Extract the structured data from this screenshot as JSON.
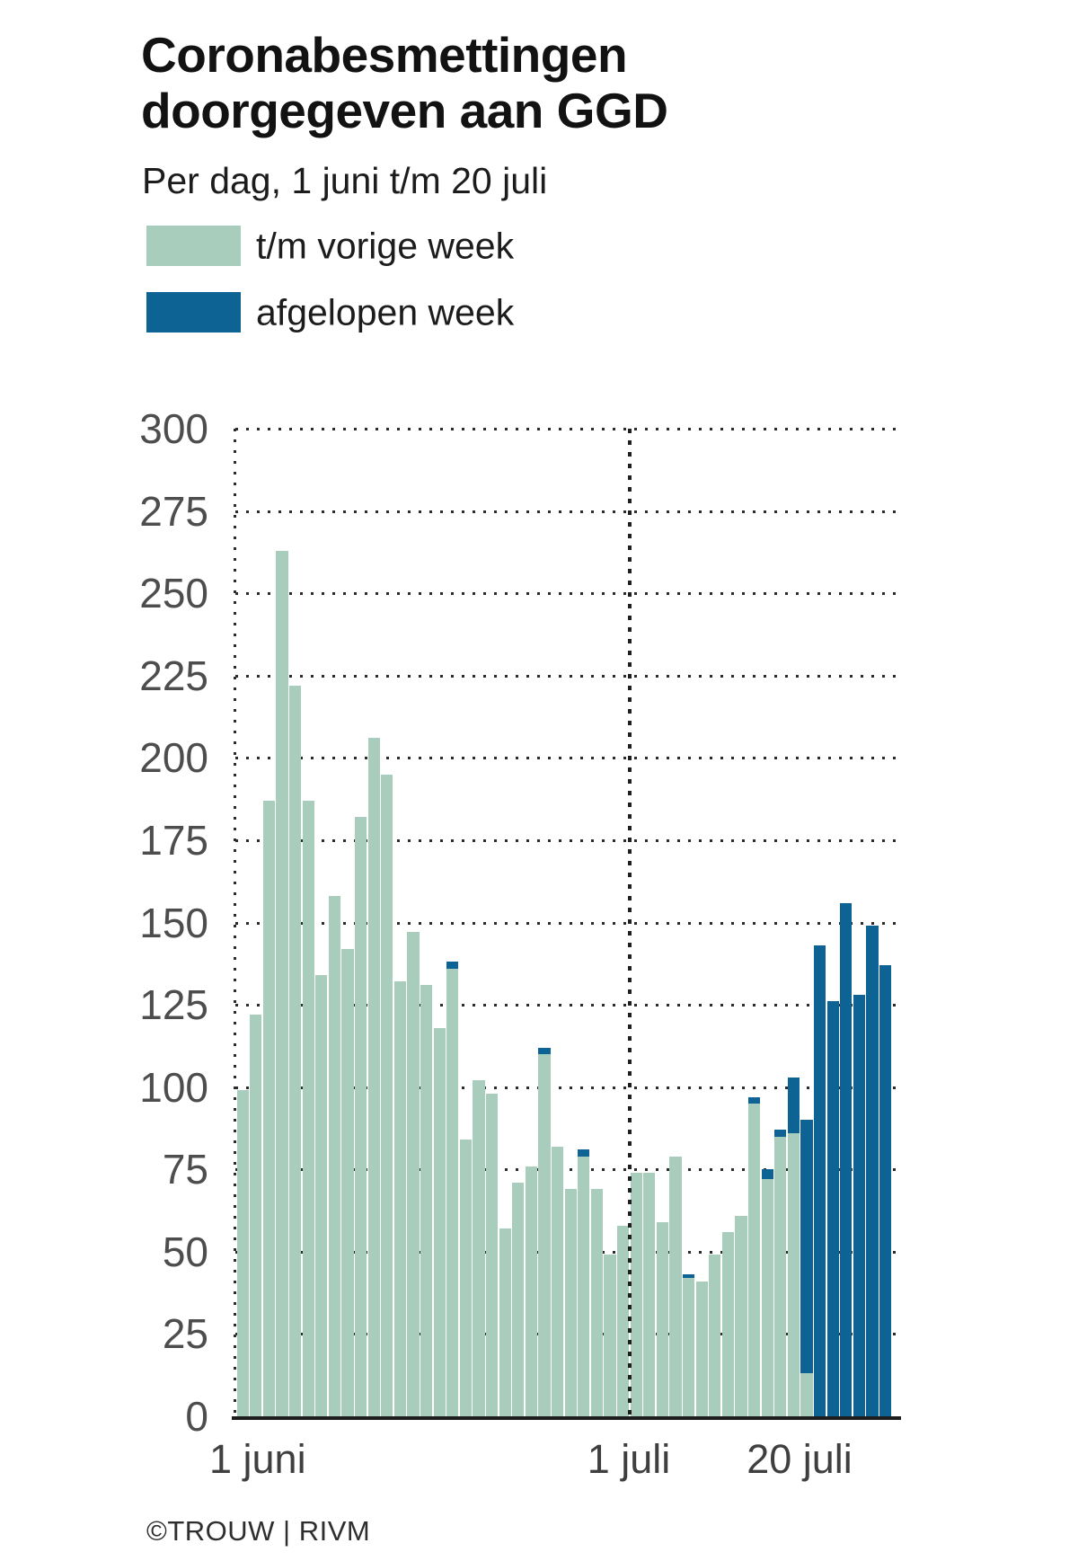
{
  "header": {
    "title_line1": "Coronabesmettingen",
    "title_line2": "doorgegeven aan GGD",
    "subtitle": "Per dag, 1 juni t/m 20 juli"
  },
  "legend": [
    {
      "label": "t/m vorige week",
      "color": "#a9cdbc"
    },
    {
      "label": "afgelopen week",
      "color": "#0d6394"
    }
  ],
  "footer": {
    "credit": "©TROUW | RIVM"
  },
  "chart_data": {
    "type": "bar",
    "stacked": true,
    "title": "Coronabesmettingen doorgegeven aan GGD",
    "subtitle": "Per dag, 1 juni t/m 20 juli",
    "ylim": [
      0,
      300
    ],
    "y_ticks": [
      0,
      25,
      50,
      75,
      100,
      125,
      150,
      175,
      200,
      225,
      250,
      275,
      300
    ],
    "x_tick_labels": [
      "1 juni",
      "1 juli",
      "20 juli"
    ],
    "grid": "dotted horizontal every 25; dotted vertical at axis and at 1 juli",
    "legend_position": "top-left",
    "categories": [
      "1 juni",
      "2 juni",
      "3 juni",
      "4 juni",
      "5 juni",
      "6 juni",
      "7 juni",
      "8 juni",
      "9 juni",
      "10 juni",
      "11 juni",
      "12 juni",
      "13 juni",
      "14 juni",
      "15 juni",
      "16 juni",
      "17 juni",
      "18 juni",
      "19 juni",
      "20 juni",
      "21 juni",
      "22 juni",
      "23 juni",
      "24 juni",
      "25 juni",
      "26 juni",
      "27 juni",
      "28 juni",
      "29 juni",
      "30 juni",
      "1 juli",
      "2 juli",
      "3 juli",
      "4 juli",
      "5 juli",
      "6 juli",
      "7 juli",
      "8 juli",
      "9 juli",
      "10 juli",
      "11 juli",
      "12 juli",
      "13 juli",
      "14 juli",
      "15 juli",
      "16 juli",
      "17 juli",
      "18 juli",
      "19 juli",
      "20 juli"
    ],
    "series": [
      {
        "name": "t/m vorige week",
        "color": "#a9cdbc",
        "values": [
          99,
          122,
          187,
          263,
          222,
          187,
          134,
          158,
          142,
          182,
          206,
          195,
          132,
          147,
          131,
          118,
          136,
          84,
          102,
          98,
          57,
          71,
          76,
          110,
          82,
          69,
          79,
          69,
          49,
          58,
          74,
          74,
          59,
          79,
          42,
          41,
          49,
          56,
          61,
          95,
          72,
          85,
          86,
          13,
          0,
          0,
          0,
          0,
          0,
          0
        ]
      },
      {
        "name": "afgelopen week",
        "color": "#0d6394",
        "values": [
          0,
          0,
          0,
          0,
          0,
          0,
          0,
          0,
          0,
          0,
          0,
          0,
          0,
          0,
          0,
          0,
          2,
          0,
          0,
          0,
          0,
          0,
          0,
          2,
          0,
          0,
          2,
          0,
          0,
          0,
          0,
          0,
          0,
          0,
          1,
          0,
          0,
          0,
          0,
          2,
          3,
          2,
          17,
          77,
          143,
          126,
          156,
          128,
          149,
          137
        ]
      }
    ]
  }
}
